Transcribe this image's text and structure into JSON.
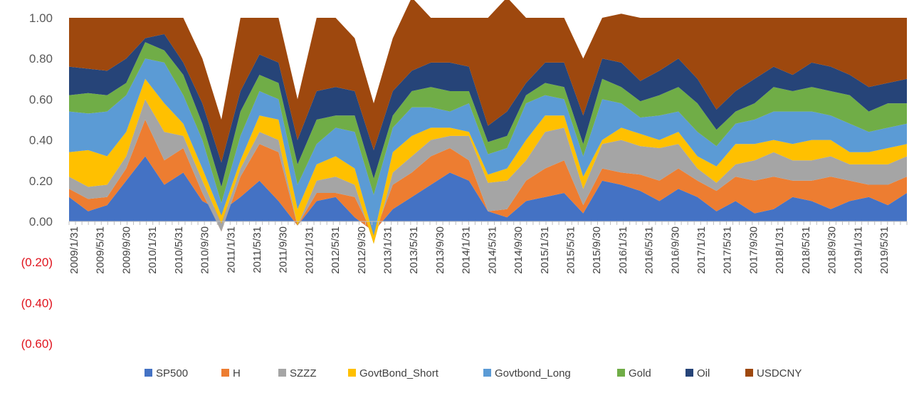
{
  "chart_data": {
    "type": "area",
    "stacked": true,
    "title": "",
    "xlabel": "",
    "ylabel": "",
    "ylim": [
      -0.6,
      1.0
    ],
    "y_ticks": [
      {
        "value": 1.0,
        "label": "1.00"
      },
      {
        "value": 0.8,
        "label": "0.80"
      },
      {
        "value": 0.6,
        "label": "0.60"
      },
      {
        "value": 0.4,
        "label": "0.40"
      },
      {
        "value": 0.2,
        "label": "0.20"
      },
      {
        "value": 0.0,
        "label": "0.00"
      },
      {
        "value": -0.2,
        "label": "(0.20)"
      },
      {
        "value": -0.4,
        "label": "(0.40)"
      },
      {
        "value": -0.6,
        "label": "(0.60)"
      }
    ],
    "negative_label_color": "#e0141e",
    "x_tick_labels": [
      "2009/1/31",
      "2009/5/31",
      "2009/9/30",
      "2010/1/31",
      "2010/5/31",
      "2010/9/30",
      "2011/1/31",
      "2011/5/31",
      "2011/9/30",
      "2012/1/31",
      "2012/5/31",
      "2012/9/30",
      "2013/1/31",
      "2013/5/31",
      "2013/9/30",
      "2014/1/31",
      "2014/5/31",
      "2014/9/30",
      "2015/1/31",
      "2015/5/31",
      "2015/9/30",
      "2016/1/31",
      "2016/5/31",
      "2016/9/30",
      "2017/1/31",
      "2017/5/31",
      "2017/9/30",
      "2018/1/31",
      "2018/5/31",
      "2018/9/30",
      "2019/1/31",
      "2019/5/31"
    ],
    "legend_position": "bottom",
    "series": [
      {
        "name": "SP500",
        "color": "#4472c4",
        "values": [
          0.12,
          0.05,
          0.08,
          0.2,
          0.32,
          0.18,
          0.24,
          0.1,
          0.05,
          0.12,
          0.2,
          0.1,
          -0.02,
          0.1,
          0.12,
          0.02,
          -0.05,
          0.06,
          0.12,
          0.18,
          0.24,
          0.2,
          0.05,
          0.02,
          0.1,
          0.12,
          0.14,
          0.04,
          0.2,
          0.18,
          0.15,
          0.1,
          0.16,
          0.12,
          0.05,
          0.1,
          0.04,
          0.06,
          0.12,
          0.1,
          0.06,
          0.1,
          0.12,
          0.08,
          0.14
        ]
      },
      {
        "name": "H",
        "color": "#ed7d31",
        "values": [
          0.04,
          0.06,
          0.04,
          0.06,
          0.18,
          0.12,
          0.12,
          0.04,
          -0.1,
          0.1,
          0.18,
          0.24,
          0.0,
          0.04,
          0.02,
          0.1,
          -0.02,
          0.12,
          0.12,
          0.14,
          0.12,
          0.1,
          0.0,
          0.04,
          0.1,
          0.14,
          0.16,
          0.04,
          0.06,
          0.06,
          0.08,
          0.1,
          0.1,
          0.08,
          0.1,
          0.12,
          0.16,
          0.16,
          0.08,
          0.1,
          0.16,
          0.1,
          0.06,
          0.1,
          0.08
        ]
      },
      {
        "name": "SZZZ",
        "color": "#a5a5a5",
        "values": [
          0.06,
          0.06,
          0.06,
          0.06,
          0.1,
          0.14,
          0.06,
          0.06,
          0.04,
          0.04,
          0.06,
          0.06,
          0.0,
          0.06,
          0.08,
          0.06,
          -0.04,
          0.06,
          0.08,
          0.08,
          0.06,
          0.12,
          0.14,
          0.14,
          0.1,
          0.18,
          0.16,
          0.08,
          0.12,
          0.16,
          0.14,
          0.16,
          0.12,
          0.06,
          0.04,
          0.06,
          0.1,
          0.12,
          0.1,
          0.1,
          0.1,
          0.08,
          0.1,
          0.1,
          0.1
        ]
      },
      {
        "name": "GovtBond_Short",
        "color": "#ffc000",
        "values": [
          0.12,
          0.18,
          0.14,
          0.12,
          0.1,
          0.14,
          0.06,
          0.06,
          0.04,
          0.04,
          0.08,
          0.1,
          0.08,
          0.08,
          0.1,
          0.08,
          0.04,
          0.1,
          0.1,
          0.06,
          0.04,
          0.02,
          0.04,
          0.06,
          0.1,
          0.08,
          0.06,
          0.06,
          0.02,
          0.06,
          0.06,
          0.04,
          0.06,
          0.06,
          0.08,
          0.1,
          0.08,
          0.06,
          0.08,
          0.1,
          0.08,
          0.06,
          0.06,
          0.08,
          0.06
        ]
      },
      {
        "name": "Govtbond_Long",
        "color": "#5b9bd5",
        "values": [
          0.2,
          0.18,
          0.22,
          0.18,
          0.1,
          0.2,
          0.14,
          0.14,
          0.06,
          0.12,
          0.12,
          0.1,
          0.12,
          0.1,
          0.14,
          0.18,
          0.2,
          0.12,
          0.14,
          0.1,
          0.08,
          0.14,
          0.1,
          0.1,
          0.18,
          0.1,
          0.08,
          0.1,
          0.2,
          0.12,
          0.08,
          0.12,
          0.1,
          0.12,
          0.1,
          0.1,
          0.12,
          0.14,
          0.16,
          0.14,
          0.12,
          0.14,
          0.1,
          0.1,
          0.1
        ]
      },
      {
        "name": "Gold",
        "color": "#70ad47",
        "values": [
          0.08,
          0.1,
          0.08,
          0.06,
          0.08,
          0.06,
          0.1,
          0.08,
          0.08,
          0.12,
          0.08,
          0.08,
          0.1,
          0.12,
          0.06,
          0.08,
          0.08,
          0.06,
          0.08,
          0.1,
          0.1,
          0.06,
          0.06,
          0.06,
          0.04,
          0.06,
          0.06,
          0.06,
          0.1,
          0.08,
          0.08,
          0.1,
          0.12,
          0.14,
          0.08,
          0.06,
          0.08,
          0.12,
          0.1,
          0.12,
          0.12,
          0.14,
          0.1,
          0.12,
          0.1
        ]
      },
      {
        "name": "Oil",
        "color": "#264478",
        "values": [
          0.14,
          0.12,
          0.12,
          0.12,
          0.02,
          0.08,
          0.06,
          0.1,
          0.12,
          0.1,
          0.1,
          0.1,
          0.12,
          0.14,
          0.14,
          0.12,
          0.14,
          0.12,
          0.1,
          0.12,
          0.14,
          0.12,
          0.08,
          0.12,
          0.06,
          0.1,
          0.12,
          0.14,
          0.1,
          0.12,
          0.1,
          0.12,
          0.14,
          0.12,
          0.1,
          0.1,
          0.12,
          0.1,
          0.08,
          0.12,
          0.12,
          0.1,
          0.12,
          0.1,
          0.12
        ]
      },
      {
        "name": "USDCNY",
        "color": "#9e480e",
        "values": [
          0.24,
          0.25,
          0.26,
          0.2,
          0.1,
          0.08,
          0.22,
          0.22,
          0.21,
          0.36,
          0.18,
          0.22,
          0.2,
          0.36,
          0.34,
          0.26,
          0.23,
          0.26,
          0.36,
          0.22,
          0.22,
          0.24,
          0.53,
          0.56,
          0.32,
          0.22,
          0.22,
          0.28,
          0.2,
          0.24,
          0.31,
          0.26,
          0.2,
          0.3,
          0.45,
          0.36,
          0.3,
          0.24,
          0.28,
          0.22,
          0.24,
          0.28,
          0.34,
          0.32,
          0.3
        ]
      }
    ]
  }
}
